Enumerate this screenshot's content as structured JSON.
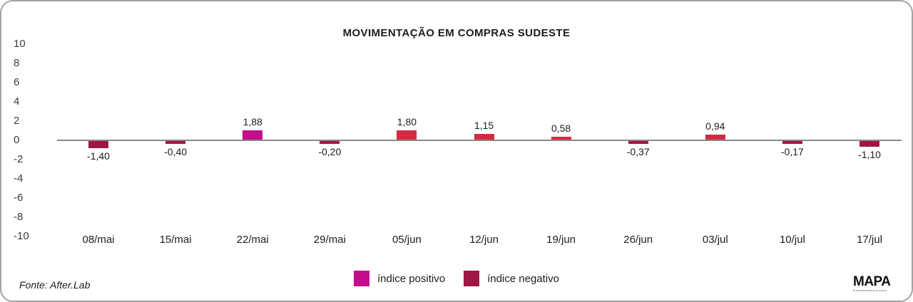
{
  "chart_data": {
    "type": "bar",
    "title": "MOVIMENTAÇÃO EM COMPRAS SUDESTE",
    "xlabel": "",
    "ylabel": "",
    "ylim": [
      -10,
      10
    ],
    "yticks": [
      "10",
      "8",
      "6",
      "4",
      "2",
      "0",
      "-2",
      "-4",
      "-6",
      "-8",
      "-10"
    ],
    "grid": false,
    "legend_position": "bottom-center",
    "categories": [
      "08/mai",
      "15/mai",
      "22/mai",
      "29/mai",
      "05/jun",
      "12/jun",
      "19/jun",
      "26/jun",
      "03/jul",
      "10/jul",
      "17/jul"
    ],
    "values": [
      -1.4,
      -0.4,
      1.88,
      -0.2,
      1.8,
      1.15,
      0.58,
      -0.37,
      0.94,
      -0.17,
      -1.1
    ],
    "points": [
      {
        "date": "08/mai",
        "value": -1.4,
        "label": "-1,40",
        "color": "#a01647"
      },
      {
        "date": "15/mai",
        "value": -0.4,
        "label": "-0,40",
        "color": "#a01647"
      },
      {
        "date": "22/mai",
        "value": 1.88,
        "label": "1,88",
        "color": "#c40e8c"
      },
      {
        "date": "29/mai",
        "value": -0.2,
        "label": "-0,20",
        "color": "#a01647"
      },
      {
        "date": "05/jun",
        "value": 1.8,
        "label": "1,80",
        "color": "#d62a42"
      },
      {
        "date": "12/jun",
        "value": 1.15,
        "label": "1,15",
        "color": "#d62a42"
      },
      {
        "date": "19/jun",
        "value": 0.58,
        "label": "0,58",
        "color": "#d62a42"
      },
      {
        "date": "26/jun",
        "value": -0.37,
        "label": "-0,37",
        "color": "#a01647"
      },
      {
        "date": "03/jul",
        "value": 0.94,
        "label": "0,94",
        "color": "#d62a42"
      },
      {
        "date": "10/jul",
        "value": -0.17,
        "label": "-0,17",
        "color": "#a01647"
      },
      {
        "date": "17/jul",
        "value": -1.1,
        "label": "-1,10",
        "color": "#a01647"
      }
    ]
  },
  "legend": [
    {
      "label": "índice positivo",
      "color": "#c40e8c"
    },
    {
      "label": "índice negativo",
      "color": "#a01647"
    }
  ],
  "footer": {
    "source": "Fonte: After.Lab",
    "logo": "MAPA"
  },
  "colors": {
    "positive_highlight": "#c40e8c",
    "positive": "#d62a42",
    "negative": "#a01647",
    "axis_line": "#8a8a8a",
    "card_border": "#a3a3a3",
    "text": "#1d1d1b"
  }
}
